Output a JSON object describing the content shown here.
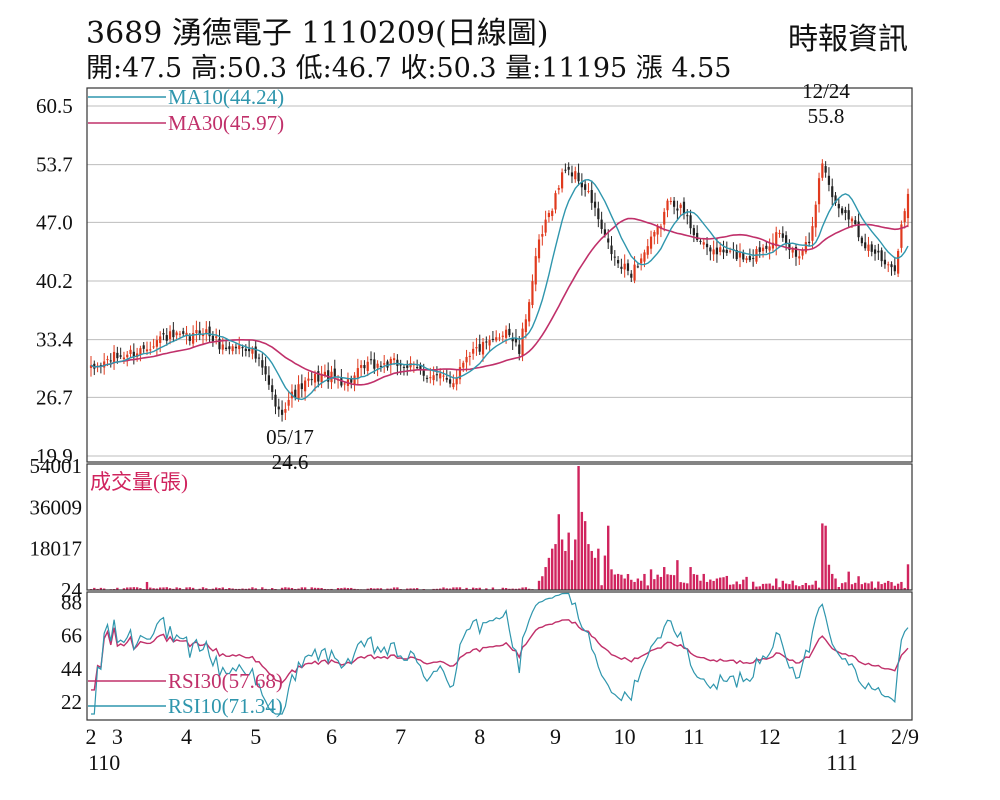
{
  "header": {
    "title": "3689 湧德電子 1110209(日線圖)",
    "ohlc": "開:47.5 高:50.3 低:46.7 收:50.3 量:11195 漲 4.55",
    "source": "時報資訊"
  },
  "chart_data": [
    {
      "type": "candlestick",
      "panel": "price",
      "y_ticks": [
        "60.5",
        "53.7",
        "47.0",
        "40.2",
        "33.4",
        "26.7",
        "19.9"
      ],
      "ylim": [
        19.9,
        60.5
      ],
      "grid": true,
      "legend": [
        "MA10(44.24)",
        "MA30(45.97)"
      ],
      "colors": {
        "up": "#e03a1e",
        "down": "#222222",
        "ma10": "#2f96ad",
        "ma30": "#c0306a"
      },
      "annotations": [
        {
          "date": "12/24",
          "value": "55.8"
        },
        {
          "date": "05/17",
          "value": "24.6"
        }
      ],
      "close_anchors": [
        [
          0,
          29.8
        ],
        [
          6,
          31.2
        ],
        [
          14,
          32.0
        ],
        [
          22,
          33.8
        ],
        [
          30,
          33.5
        ],
        [
          34,
          34.6
        ],
        [
          40,
          32.5
        ],
        [
          48,
          32.6
        ],
        [
          52,
          30.0
        ],
        [
          55,
          27.0
        ],
        [
          57,
          24.8
        ],
        [
          60,
          26.5
        ],
        [
          64,
          28.0
        ],
        [
          70,
          29.3
        ],
        [
          78,
          28.5
        ],
        [
          84,
          30.4
        ],
        [
          94,
          30.6
        ],
        [
          104,
          29.1
        ],
        [
          110,
          28.6
        ],
        [
          114,
          31.8
        ],
        [
          122,
          33.0
        ],
        [
          126,
          34.8
        ],
        [
          130,
          31.9
        ],
        [
          136,
          44.5
        ],
        [
          140,
          49.0
        ],
        [
          144,
          53.5
        ],
        [
          148,
          52.0
        ],
        [
          152,
          49.5
        ],
        [
          156,
          45.0
        ],
        [
          160,
          42.0
        ],
        [
          164,
          41.2
        ],
        [
          168,
          43.5
        ],
        [
          172,
          46.0
        ],
        [
          176,
          50.0
        ],
        [
          180,
          48.0
        ],
        [
          186,
          44.0
        ],
        [
          192,
          43.5
        ],
        [
          200,
          43.0
        ],
        [
          208,
          45.5
        ],
        [
          214,
          43.2
        ],
        [
          218,
          45.0
        ],
        [
          222,
          54.0
        ],
        [
          226,
          49.0
        ],
        [
          230,
          48.0
        ],
        [
          234,
          45.0
        ],
        [
          238,
          43.5
        ],
        [
          242,
          41.5
        ],
        [
          244,
          42.0
        ],
        [
          246,
          46.5
        ],
        [
          248,
          50.3
        ]
      ],
      "ma10_last": 44.24,
      "ma30_last": 45.97
    },
    {
      "type": "bar",
      "panel": "volume",
      "label": "成交量(張)",
      "y_ticks": [
        "54001",
        "36009",
        "18017",
        "24"
      ],
      "ylim": [
        0,
        54001
      ],
      "color": "#d0245e",
      "spikes": [
        [
          17,
          3500
        ],
        [
          136,
          4000
        ],
        [
          137,
          6000
        ],
        [
          138,
          10000
        ],
        [
          139,
          14000
        ],
        [
          140,
          18000
        ],
        [
          141,
          20000
        ],
        [
          142,
          33000
        ],
        [
          143,
          22000
        ],
        [
          144,
          17000
        ],
        [
          145,
          25000
        ],
        [
          146,
          13000
        ],
        [
          147,
          22000
        ],
        [
          148,
          54001
        ],
        [
          149,
          34000
        ],
        [
          150,
          30000
        ],
        [
          151,
          20000
        ],
        [
          152,
          17000
        ],
        [
          153,
          14000
        ],
        [
          154,
          18000
        ],
        [
          156,
          15000
        ],
        [
          157,
          28000
        ],
        [
          158,
          9000
        ],
        [
          160,
          7000
        ],
        [
          162,
          5000
        ],
        [
          166,
          5000
        ],
        [
          170,
          9000
        ],
        [
          174,
          10000
        ],
        [
          178,
          13000
        ],
        [
          182,
          10000
        ],
        [
          186,
          7000
        ],
        [
          190,
          5000
        ],
        [
          198,
          4500
        ],
        [
          208,
          5000
        ],
        [
          210,
          4000
        ],
        [
          222,
          29000
        ],
        [
          223,
          28000
        ],
        [
          224,
          11000
        ],
        [
          225,
          7000
        ],
        [
          226,
          5000
        ],
        [
          230,
          8000
        ],
        [
          233,
          6000
        ],
        [
          248,
          11195
        ]
      ]
    },
    {
      "type": "line",
      "panel": "rsi",
      "y_ticks": [
        "88",
        "66",
        "44",
        "22"
      ],
      "ylim": [
        10,
        95
      ],
      "legend": [
        "RSI30(57.68)",
        "RSI10(71.34)"
      ],
      "colors": {
        "rsi30": "#c0306a",
        "rsi10": "#2f96ad"
      },
      "rsi30_last": 57.68,
      "rsi10_last": 71.34
    }
  ],
  "x_axis": {
    "labels": [
      "2",
      "3",
      "4",
      "5",
      "6",
      "7",
      "8",
      "9",
      "10",
      "11",
      "12",
      "1",
      "2/9"
    ],
    "label_days": [
      0,
      8,
      29,
      50,
      73,
      94,
      118,
      141,
      162,
      183,
      206,
      228,
      248
    ],
    "year_labels": [
      {
        "text": "110",
        "day": 4
      },
      {
        "text": "111",
        "day": 228
      }
    ]
  }
}
